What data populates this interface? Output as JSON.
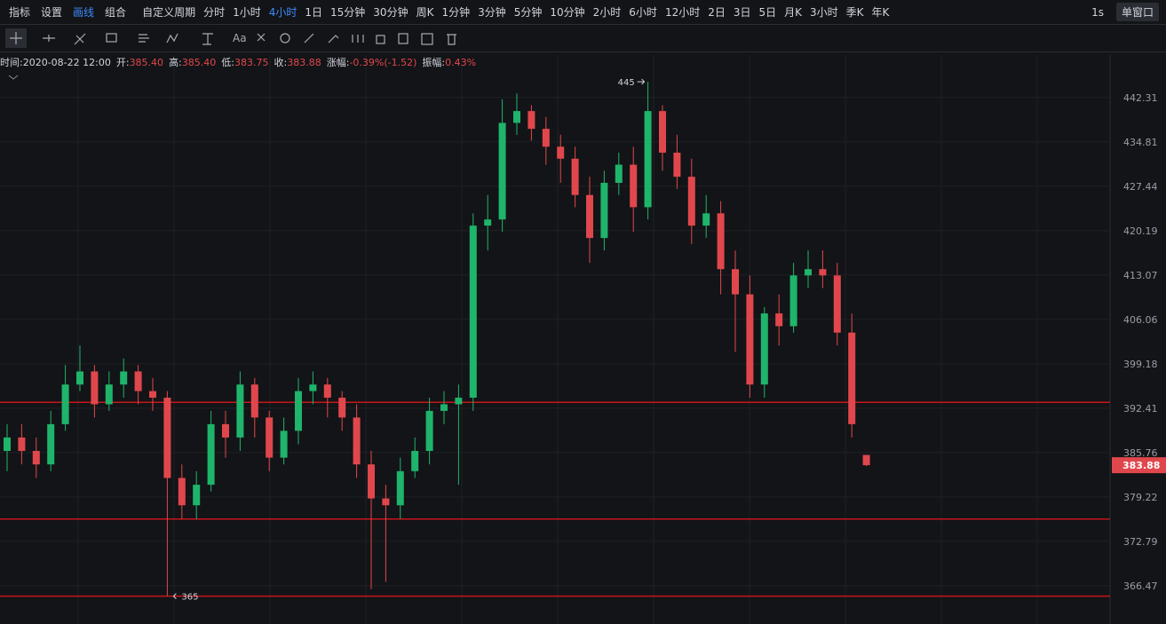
{
  "toolbar": {
    "left": [
      "指标",
      "设置",
      "画线",
      "组合"
    ],
    "periods": [
      "自定义周期",
      "分时",
      "1小时",
      "4小时",
      "1日",
      "15分钟",
      "30分钟",
      "周K",
      "1分钟",
      "3分钟",
      "5分钟",
      "10分钟",
      "2小时",
      "6小时",
      "12小时",
      "2日",
      "3日",
      "5日",
      "月K",
      "3小时",
      "季K",
      "年K"
    ],
    "right": [
      "1s",
      "单窗口"
    ]
  },
  "header": {
    "time": "时间:2020-08-22 12:00",
    "items": [
      {
        "label": "开:",
        "value": "385.40"
      },
      {
        "label": "高:",
        "value": "385.40"
      },
      {
        "label": "低:",
        "value": "383.75"
      },
      {
        "label": "收:",
        "value": "383.88"
      },
      {
        "label": "涨幅:",
        "value": "-0.39%(-1.52)"
      },
      {
        "label": "振幅:",
        "value": "0.43%"
      }
    ]
  },
  "chart_data": {
    "type": "candlestick",
    "log_scale": true,
    "ylim": [
      361.1,
      449.6
    ],
    "yticks": [
      442.31,
      434.81,
      427.44,
      420.19,
      413.07,
      406.06,
      399.18,
      392.41,
      385.76,
      379.22,
      372.79,
      366.47
    ],
    "up_color": "#1fb46b",
    "down_color": "#e0474c",
    "hline_color": "#c4161c",
    "hlines": [
      393.3,
      376,
      365
    ],
    "candles": {
      "open": [
        386,
        388,
        386,
        384,
        390,
        396,
        398,
        393,
        396,
        398,
        395,
        394,
        382,
        378,
        381,
        390,
        388,
        396,
        391,
        385,
        389,
        395,
        396,
        394,
        391,
        384,
        379,
        378,
        383,
        386,
        392,
        393,
        394,
        421,
        422,
        438,
        440,
        437,
        434,
        432,
        426,
        419,
        428,
        431,
        424,
        440,
        433,
        429,
        421,
        423,
        414,
        410,
        396,
        407,
        405,
        413,
        414,
        413,
        404,
        385.4
      ],
      "high": [
        390,
        390,
        388,
        392,
        399,
        402,
        399,
        398,
        400,
        399,
        397,
        395,
        384,
        383,
        392,
        392,
        398,
        397,
        392,
        391,
        397,
        398,
        397,
        395,
        393,
        386,
        381,
        385,
        388,
        394,
        395,
        396,
        423,
        426,
        442,
        443,
        441,
        439,
        436,
        434,
        429,
        430,
        433,
        434,
        445,
        441,
        436,
        432,
        426,
        425,
        417,
        413,
        408,
        410,
        415,
        417,
        417,
        415,
        407,
        385.4
      ],
      "low": [
        383,
        384,
        382,
        383,
        389,
        395,
        391,
        392,
        394,
        393,
        392,
        365,
        376,
        376,
        380,
        385,
        386,
        388,
        383,
        384,
        387,
        393,
        391,
        389,
        382,
        366,
        367,
        376,
        382,
        384,
        390,
        381,
        392,
        417,
        420,
        436,
        435,
        431,
        428,
        424,
        415,
        417,
        426,
        420,
        422,
        430,
        427,
        418,
        419,
        410,
        401,
        394,
        394,
        402,
        404,
        411,
        411,
        402,
        388,
        383.75
      ],
      "close": [
        388,
        386,
        384,
        390,
        396,
        398,
        393,
        396,
        398,
        395,
        394,
        382,
        378,
        381,
        390,
        388,
        396,
        391,
        385,
        389,
        395,
        396,
        394,
        391,
        384,
        379,
        378,
        383,
        386,
        392,
        393,
        394,
        421,
        422,
        438,
        440,
        437,
        434,
        432,
        426,
        419,
        428,
        431,
        424,
        440,
        433,
        429,
        421,
        423,
        414,
        410,
        396,
        407,
        405,
        413,
        414,
        413,
        404,
        390,
        383.88
      ]
    }
  }
}
